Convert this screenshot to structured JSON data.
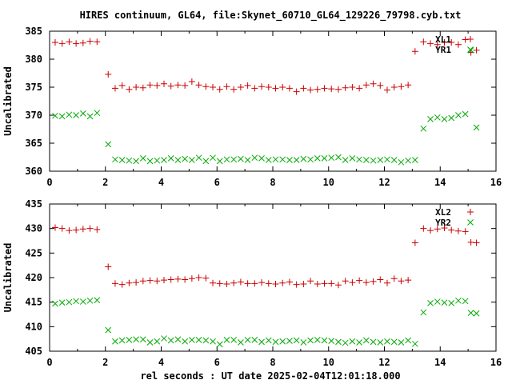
{
  "title": "HIRES continuum, GL64, file:Skynet_60710_GL64_129226_79798.cyb.txt",
  "xlabel": "rel seconds : UT date 2025-02-04T12:01:18.000",
  "chart_data": [
    {
      "type": "scatter",
      "ylabel": "Uncalibrated",
      "xlim": [
        0,
        16
      ],
      "ylim": [
        360,
        385
      ],
      "xticks": [
        "0",
        "2",
        "4",
        "6",
        "8",
        "10",
        "12",
        "14",
        "16"
      ],
      "yticks": [
        "360",
        "365",
        "370",
        "375",
        "380",
        "385"
      ],
      "legend_position": "top-right",
      "series": [
        {
          "name": "XL1",
          "marker": "plus",
          "color": "#cc0000",
          "x": [
            0.2,
            0.45,
            0.7,
            0.95,
            1.2,
            1.45,
            1.7,
            2.1,
            2.35,
            2.6,
            2.85,
            3.1,
            3.35,
            3.6,
            3.85,
            4.1,
            4.35,
            4.6,
            4.85,
            5.1,
            5.35,
            5.6,
            5.85,
            6.1,
            6.35,
            6.6,
            6.85,
            7.1,
            7.35,
            7.6,
            7.85,
            8.1,
            8.35,
            8.6,
            8.85,
            9.1,
            9.35,
            9.6,
            9.85,
            10.1,
            10.35,
            10.6,
            10.85,
            11.1,
            11.35,
            11.6,
            11.85,
            12.1,
            12.35,
            12.6,
            12.85,
            13.1,
            13.4,
            13.65,
            13.9,
            14.15,
            14.4,
            14.65,
            14.9,
            15.1,
            15.3
          ],
          "y": [
            383.0,
            382.8,
            383.1,
            382.8,
            382.9,
            383.2,
            383.1,
            377.3,
            374.8,
            375.3,
            374.6,
            375.0,
            374.9,
            375.4,
            375.3,
            375.6,
            375.2,
            375.4,
            375.3,
            376.0,
            375.4,
            375.1,
            375.0,
            374.6,
            375.1,
            374.6,
            375.0,
            375.3,
            374.8,
            375.1,
            375.0,
            374.8,
            375.0,
            374.8,
            374.2,
            374.8,
            374.5,
            374.6,
            374.8,
            374.7,
            374.6,
            374.9,
            375.0,
            374.8,
            375.4,
            375.6,
            375.3,
            374.5,
            375.0,
            375.1,
            375.4,
            381.4,
            383.1,
            382.8,
            382.6,
            383.0,
            383.0,
            382.6,
            383.5,
            381.2,
            381.6
          ]
        },
        {
          "name": "YR1",
          "marker": "cross",
          "color": "#00aa00",
          "x": [
            0.2,
            0.45,
            0.7,
            0.95,
            1.2,
            1.45,
            1.7,
            2.1,
            2.35,
            2.6,
            2.85,
            3.1,
            3.35,
            3.6,
            3.85,
            4.1,
            4.35,
            4.6,
            4.85,
            5.1,
            5.35,
            5.6,
            5.85,
            6.1,
            6.35,
            6.6,
            6.85,
            7.1,
            7.35,
            7.6,
            7.85,
            8.1,
            8.35,
            8.6,
            8.85,
            9.1,
            9.35,
            9.6,
            9.85,
            10.1,
            10.35,
            10.6,
            10.85,
            11.1,
            11.35,
            11.6,
            11.85,
            12.1,
            12.35,
            12.6,
            12.85,
            13.1,
            13.4,
            13.65,
            13.9,
            14.15,
            14.4,
            14.65,
            14.9,
            15.1,
            15.3
          ],
          "y": [
            369.9,
            369.8,
            370.1,
            370.0,
            370.3,
            369.8,
            370.4,
            364.8,
            362.1,
            362.0,
            361.9,
            361.8,
            362.3,
            361.8,
            361.9,
            362.0,
            362.3,
            362.0,
            362.2,
            362.0,
            362.4,
            361.8,
            362.4,
            361.8,
            362.1,
            362.1,
            362.2,
            362.0,
            362.4,
            362.3,
            362.0,
            362.1,
            362.1,
            362.0,
            362.0,
            362.2,
            362.1,
            362.3,
            362.3,
            362.4,
            362.5,
            362.0,
            362.3,
            362.1,
            362.0,
            361.9,
            362.0,
            362.1,
            362.0,
            361.6,
            361.9,
            362.0,
            367.6,
            369.3,
            369.6,
            369.3,
            369.5,
            370.0,
            370.2,
            381.6,
            367.8
          ]
        }
      ]
    },
    {
      "type": "scatter",
      "ylabel": "Uncalibrated",
      "xlim": [
        0,
        16
      ],
      "ylim": [
        405,
        435
      ],
      "xticks": [
        "0",
        "2",
        "4",
        "6",
        "8",
        "10",
        "12",
        "14",
        "16"
      ],
      "yticks": [
        "405",
        "410",
        "415",
        "420",
        "425",
        "430",
        "435"
      ],
      "legend_position": "top-right",
      "series": [
        {
          "name": "XL2",
          "marker": "plus",
          "color": "#cc0000",
          "x": [
            0.2,
            0.45,
            0.7,
            0.95,
            1.2,
            1.45,
            1.7,
            2.1,
            2.35,
            2.6,
            2.85,
            3.1,
            3.35,
            3.6,
            3.85,
            4.1,
            4.35,
            4.6,
            4.85,
            5.1,
            5.35,
            5.6,
            5.85,
            6.1,
            6.35,
            6.6,
            6.85,
            7.1,
            7.35,
            7.6,
            7.85,
            8.1,
            8.35,
            8.6,
            8.85,
            9.1,
            9.35,
            9.6,
            9.85,
            10.1,
            10.35,
            10.6,
            10.85,
            11.1,
            11.35,
            11.6,
            11.85,
            12.1,
            12.35,
            12.6,
            12.85,
            13.1,
            13.4,
            13.65,
            13.9,
            14.15,
            14.4,
            14.65,
            14.9,
            15.1,
            15.3
          ],
          "y": [
            430.2,
            430.0,
            429.6,
            429.7,
            429.9,
            430.0,
            429.8,
            422.2,
            418.8,
            418.6,
            418.9,
            419.0,
            419.3,
            419.4,
            419.3,
            419.5,
            419.6,
            419.7,
            419.6,
            419.8,
            420.0,
            419.9,
            418.9,
            418.8,
            418.7,
            418.9,
            419.1,
            418.8,
            418.8,
            419.0,
            418.8,
            418.7,
            418.9,
            419.1,
            418.6,
            418.7,
            419.3,
            418.7,
            418.8,
            418.8,
            418.5,
            419.3,
            419.0,
            419.4,
            419.0,
            419.2,
            419.6,
            418.9,
            419.8,
            419.3,
            419.5,
            427.1,
            430.0,
            429.6,
            429.9,
            430.1,
            429.7,
            429.5,
            429.4,
            427.2,
            427.1
          ]
        },
        {
          "name": "YR2",
          "marker": "cross",
          "color": "#00aa00",
          "x": [
            0.2,
            0.45,
            0.7,
            0.95,
            1.2,
            1.45,
            1.7,
            2.1,
            2.35,
            2.6,
            2.85,
            3.1,
            3.35,
            3.6,
            3.85,
            4.1,
            4.35,
            4.6,
            4.85,
            5.1,
            5.35,
            5.6,
            5.85,
            6.1,
            6.35,
            6.6,
            6.85,
            7.1,
            7.35,
            7.6,
            7.85,
            8.1,
            8.35,
            8.6,
            8.85,
            9.1,
            9.35,
            9.6,
            9.85,
            10.1,
            10.35,
            10.6,
            10.85,
            11.1,
            11.35,
            11.6,
            11.85,
            12.1,
            12.35,
            12.6,
            12.85,
            13.1,
            13.4,
            13.65,
            13.9,
            14.15,
            14.4,
            14.65,
            14.9,
            15.1,
            15.3
          ],
          "y": [
            414.7,
            414.9,
            415.0,
            415.2,
            415.1,
            415.3,
            415.4,
            409.3,
            407.0,
            407.2,
            407.3,
            407.4,
            407.4,
            406.8,
            407.0,
            407.6,
            407.2,
            407.4,
            407.0,
            407.3,
            407.3,
            407.2,
            407.0,
            406.4,
            407.3,
            407.3,
            406.8,
            407.3,
            407.3,
            406.9,
            407.2,
            406.9,
            407.0,
            407.1,
            407.2,
            406.8,
            407.2,
            407.3,
            407.2,
            407.1,
            406.9,
            406.7,
            407.0,
            406.8,
            407.2,
            406.9,
            406.8,
            407.0,
            406.9,
            406.8,
            407.2,
            406.5,
            412.9,
            414.8,
            415.1,
            414.9,
            414.8,
            415.3,
            415.2,
            412.8,
            412.7
          ]
        }
      ]
    }
  ]
}
